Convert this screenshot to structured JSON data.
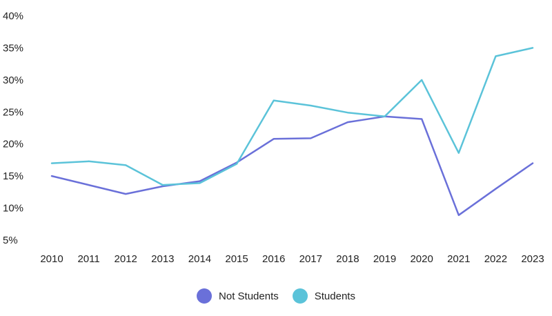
{
  "chart_data": {
    "type": "line",
    "title": "",
    "xlabel": "",
    "ylabel": "",
    "x": [
      "2010",
      "2011",
      "2012",
      "2013",
      "2014",
      "2015",
      "2016",
      "2017",
      "2018",
      "2019",
      "2020",
      "2021",
      "2022",
      "2023"
    ],
    "y_ticks": [
      "5%",
      "10%",
      "15%",
      "20%",
      "25%",
      "30%",
      "35%",
      "40%"
    ],
    "y_tick_values": [
      5,
      10,
      15,
      20,
      25,
      30,
      35,
      40
    ],
    "ylim": [
      5,
      40
    ],
    "grid": false,
    "legend_position": "bottom-center",
    "series": [
      {
        "name": "Not Students",
        "color": "#6a70d9",
        "values": [
          15.0,
          13.6,
          12.2,
          13.4,
          14.2,
          17.1,
          20.8,
          20.9,
          23.4,
          24.3,
          23.9,
          8.9,
          13.0,
          17.0
        ]
      },
      {
        "name": "Students",
        "color": "#5bc3d9",
        "values": [
          17.0,
          17.3,
          16.7,
          13.6,
          13.9,
          16.9,
          26.8,
          26.0,
          24.9,
          24.3,
          30.0,
          18.6,
          33.7,
          35.0
        ]
      }
    ]
  }
}
